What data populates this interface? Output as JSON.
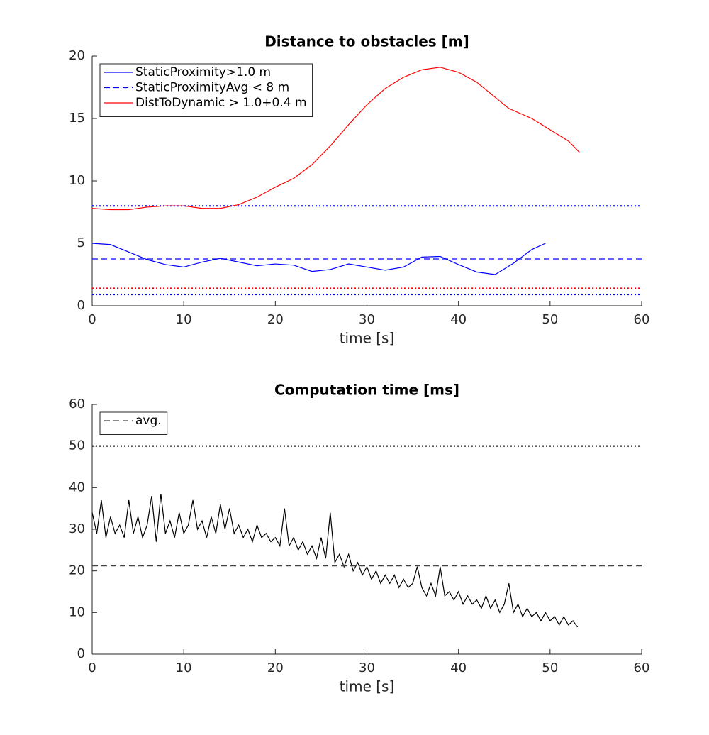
{
  "chart_data": [
    {
      "type": "line",
      "title": "Distance to obstacles [m]",
      "xlabel": "time [s]",
      "xlim": [
        0,
        60
      ],
      "ylim": [
        0,
        20
      ],
      "xticks": [
        0,
        10,
        20,
        30,
        40,
        50,
        60
      ],
      "yticks": [
        0,
        5,
        10,
        15,
        20
      ],
      "legend": "upper left",
      "series": [
        {
          "name": "StaticProximity>1.0 m",
          "color": "#0000ff",
          "style": "solid",
          "x": [
            0,
            2,
            4,
            6,
            8,
            10,
            12,
            14,
            16,
            18,
            20,
            22,
            24,
            26,
            28,
            30,
            32,
            34,
            36,
            38,
            40,
            42,
            44,
            46,
            48,
            49.5
          ],
          "values": [
            5.0,
            4.9,
            4.3,
            3.7,
            3.3,
            3.1,
            3.5,
            3.8,
            3.5,
            3.2,
            3.35,
            3.25,
            2.75,
            2.9,
            3.35,
            3.1,
            2.85,
            3.1,
            3.9,
            3.95,
            3.3,
            2.7,
            2.5,
            3.4,
            4.5,
            5.0
          ]
        },
        {
          "name": "StaticProximityAvg < 8 m",
          "color": "#0000ff",
          "style": "dashed",
          "y": 3.75
        },
        {
          "name": "DistToDynamic > 1.0+0.4 m",
          "color": "#ff0000",
          "style": "solid",
          "x": [
            0,
            2,
            4,
            6,
            8,
            10,
            12,
            14,
            16,
            18,
            20,
            22,
            24,
            26,
            28,
            30,
            32,
            34,
            36,
            38,
            40,
            42,
            44,
            45.5,
            48,
            50,
            52,
            53.2
          ],
          "values": [
            7.8,
            7.7,
            7.7,
            7.9,
            8.0,
            8.0,
            7.8,
            7.8,
            8.1,
            8.7,
            9.5,
            10.2,
            11.3,
            12.8,
            14.5,
            16.1,
            17.4,
            18.3,
            18.9,
            19.1,
            18.7,
            17.9,
            16.7,
            15.8,
            15.0,
            14.1,
            13.2,
            12.3
          ]
        }
      ],
      "reference_lines": [
        {
          "value": 8,
          "color": "#0000ff",
          "style": "dotted"
        },
        {
          "value": 1.4,
          "color": "#ff0000",
          "style": "dotted"
        },
        {
          "value": 0.9,
          "color": "#0000ff",
          "style": "dotted"
        }
      ]
    },
    {
      "type": "line",
      "title": "Computation time [ms]",
      "xlabel": "time [s]",
      "xlim": [
        0,
        60
      ],
      "ylim": [
        0,
        60
      ],
      "xticks": [
        0,
        10,
        20,
        30,
        40,
        50,
        60
      ],
      "yticks": [
        0,
        10,
        20,
        30,
        40,
        50,
        60
      ],
      "legend": "upper left",
      "series": [
        {
          "color": "#000000",
          "style": "solid",
          "x": [
            0,
            0.5,
            1,
            1.5,
            2,
            2.5,
            3,
            3.5,
            4,
            4.5,
            5,
            5.5,
            6,
            6.5,
            7,
            7.5,
            8,
            8.5,
            9,
            9.5,
            10,
            10.5,
            11,
            11.5,
            12,
            12.5,
            13,
            13.5,
            14,
            14.5,
            15,
            15.5,
            16,
            16.5,
            17,
            17.5,
            18,
            18.5,
            19,
            19.5,
            20,
            20.5,
            21,
            21.5,
            22,
            22.5,
            23,
            23.5,
            24,
            24.5,
            25,
            25.5,
            26,
            26.5,
            27,
            27.5,
            28,
            28.5,
            29,
            29.5,
            30,
            30.5,
            31,
            31.5,
            32,
            32.5,
            33,
            33.5,
            34,
            34.5,
            35,
            35.5,
            36,
            36.5,
            37,
            37.5,
            38,
            38.5,
            39,
            39.5,
            40,
            40.5,
            41,
            41.5,
            42,
            42.5,
            43,
            43.5,
            44,
            44.5,
            45,
            45.5,
            46,
            46.5,
            47,
            47.5,
            48,
            48.5,
            49,
            49.5,
            50,
            50.5,
            51,
            51.5,
            52,
            52.5,
            53
          ],
          "values": [
            34,
            29,
            37,
            28,
            33,
            29,
            31,
            28,
            37,
            29,
            33,
            28,
            31,
            38,
            27,
            38.5,
            29,
            32,
            28,
            34,
            29,
            31,
            37,
            30,
            32,
            28,
            33,
            29,
            36,
            30,
            35,
            29,
            31,
            28,
            30,
            27,
            31,
            28,
            29,
            27,
            28,
            26,
            35,
            26,
            28,
            25,
            27,
            24,
            26,
            23,
            28,
            23,
            34,
            22,
            24,
            21,
            24,
            20,
            22,
            19,
            21,
            18,
            20,
            17,
            19,
            17,
            19,
            16,
            18,
            16,
            17,
            21,
            16,
            14,
            17,
            14,
            21,
            14,
            15,
            13,
            15,
            12,
            14,
            12,
            13,
            11,
            14,
            11,
            13,
            10,
            12,
            17,
            10,
            12,
            9,
            11,
            9,
            10,
            8,
            10,
            8,
            9,
            7,
            9,
            7,
            8,
            6.5
          ]
        },
        {
          "name": "avg.",
          "color": "#444444",
          "style": "dashed",
          "y": 21.2
        }
      ],
      "reference_lines": [
        {
          "value": 50,
          "color": "#000000",
          "style": "dotted"
        }
      ]
    }
  ]
}
